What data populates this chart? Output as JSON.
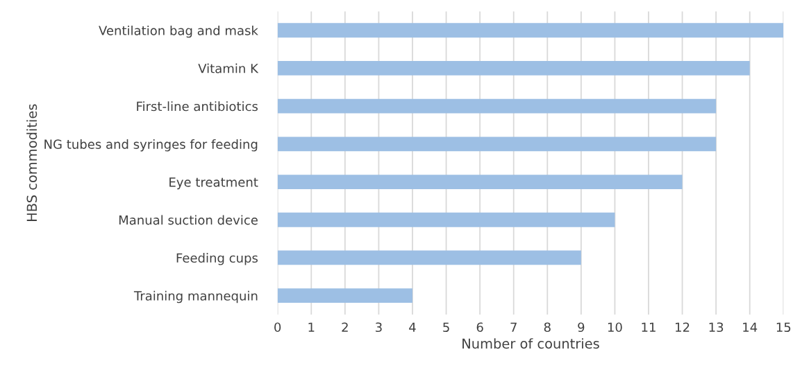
{
  "chart_data": {
    "type": "bar",
    "orientation": "horizontal",
    "xlabel": "Number of countries",
    "ylabel": "HBS commodities",
    "categories": [
      "Ventilation bag and mask",
      "Vitamin K",
      "First-line antibiotics",
      "NG tubes and syringes for feeding",
      "Eye treatment",
      "Manual suction device",
      "Feeding cups",
      "Training mannequin"
    ],
    "values": [
      15,
      14,
      13,
      13,
      12,
      10,
      9,
      4
    ],
    "color": "#9dbfe4",
    "xlim": [
      0,
      15
    ],
    "xticks": [
      0,
      1,
      2,
      3,
      4,
      5,
      6,
      7,
      8,
      9,
      10,
      11,
      12,
      13,
      14,
      15
    ],
    "grid": "x",
    "legend": false
  }
}
